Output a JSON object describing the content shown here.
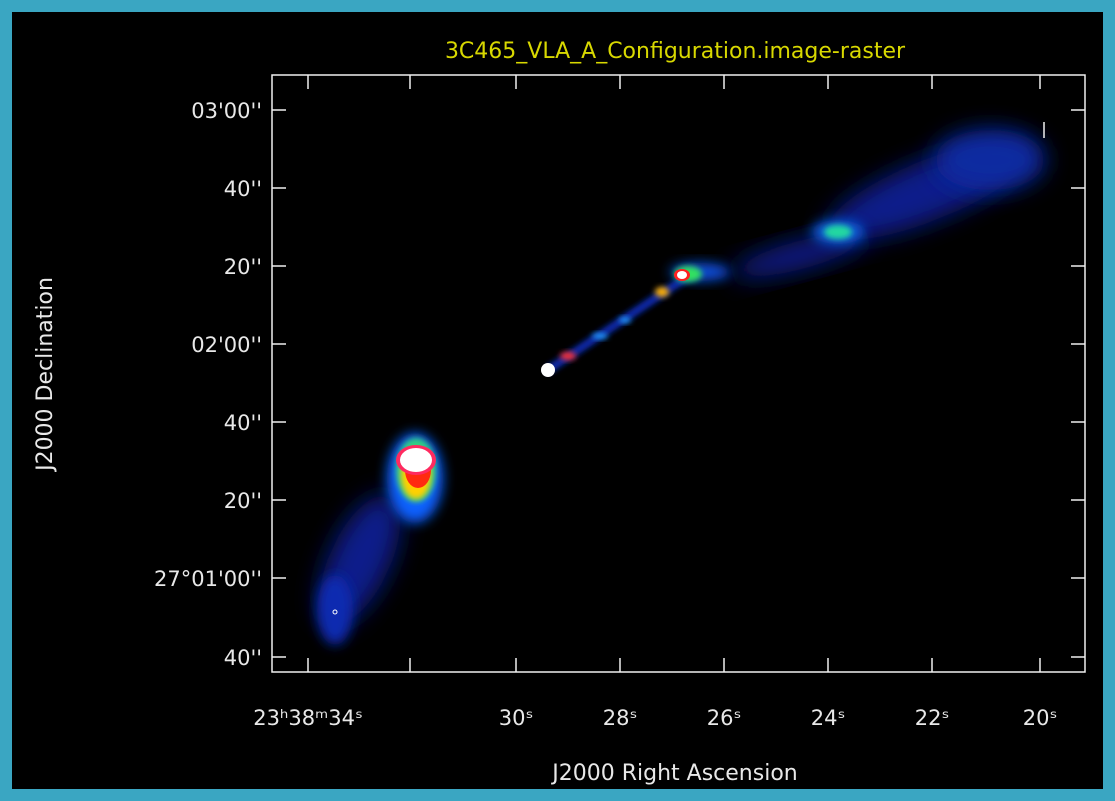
{
  "plot": {
    "title": "3C465_VLA_A_Configuration.image-raster",
    "x_axis_label": "J2000 Right Ascension",
    "y_axis_label": "J2000 Declination",
    "x_ticks": [
      "23ʰ38ᵐ34ˢ",
      "30ˢ",
      "28ˢ",
      "26ˢ",
      "24ˢ",
      "22ˢ",
      "20ˢ"
    ],
    "y_ticks": [
      "03'00''",
      "40''",
      "20''",
      "02'00''",
      "40''",
      "20''",
      "27°01'00''",
      "40''"
    ]
  }
}
